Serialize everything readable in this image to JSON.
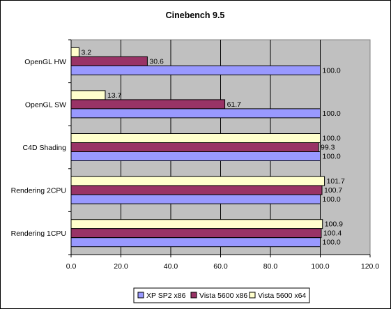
{
  "chart_data": {
    "type": "bar",
    "orientation": "horizontal",
    "title": "Cinebench 9.5",
    "xlabel": "",
    "ylabel": "",
    "categories": [
      "OpenGL HW",
      "OpenGL SW",
      "C4D Shading",
      "Rendering 2CPU",
      "Rendering 1CPU"
    ],
    "series": [
      {
        "name": "XP SP2 x86",
        "color": "#9999ff",
        "values": [
          100.0,
          100.0,
          100.0,
          100.0,
          100.0
        ]
      },
      {
        "name": "Vista 5600 x86",
        "color": "#993366",
        "values": [
          30.6,
          61.7,
          99.3,
          100.7,
          100.4
        ]
      },
      {
        "name": "Vista 5600 x64",
        "color": "#ffffcc",
        "values": [
          3.2,
          13.7,
          100.0,
          101.7,
          100.9
        ]
      }
    ],
    "value_labels": {
      "XP SP2 x86": [
        "100.0",
        "100.0",
        "100.0",
        "100.0",
        "100.0"
      ],
      "Vista 5600 x86": [
        "30.6",
        "61.7",
        "99.3",
        "100.7",
        "100.4"
      ],
      "Vista 5600 x64": [
        "3.2",
        "13.7",
        "100.0",
        "101.7",
        "100.9"
      ]
    },
    "xlim": [
      0,
      120
    ],
    "x_ticks": [
      "0.0",
      "20.0",
      "40.0",
      "60.0",
      "80.0",
      "100.0",
      "120.0"
    ],
    "grid": true,
    "plot_background": "#c0c0c0",
    "legend_position": "bottom"
  }
}
